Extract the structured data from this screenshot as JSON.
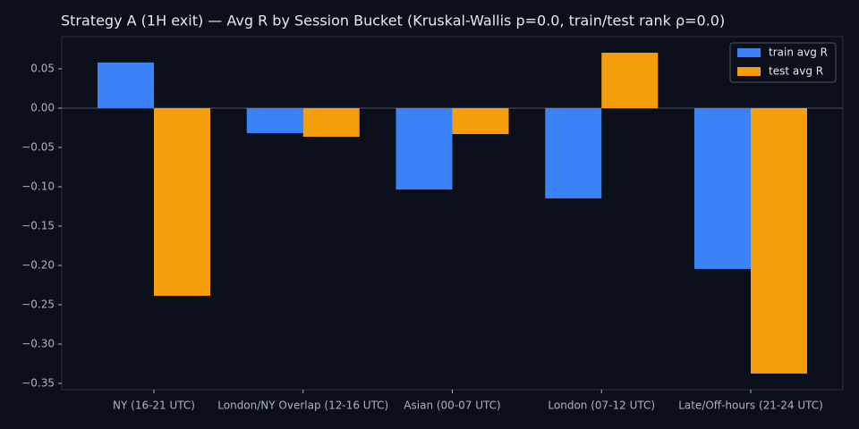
{
  "chart_data": {
    "type": "bar",
    "title": "Strategy A (1H exit) — Avg R by Session Bucket (Kruskal-Wallis p=0.0, train/test rank ρ=0.0)",
    "categories": [
      "NY (16-21 UTC)",
      "London/NY Overlap (12-16 UTC)",
      "Asian (00-07 UTC)",
      "London (07-12 UTC)",
      "Late/Off-hours (21-24 UTC)"
    ],
    "series": [
      {
        "name": "train avg R",
        "color": "#3b82f6",
        "values": [
          0.058,
          -0.0318,
          -0.1034,
          -0.1148,
          -0.2045
        ]
      },
      {
        "name": "test avg R",
        "color": "#f59e0b",
        "values": [
          -0.2386,
          -0.0364,
          -0.033,
          0.0705,
          -0.3375
        ]
      }
    ],
    "ylim": [
      -0.358,
      0.0909
    ],
    "yticks": [
      0.05,
      {
        "value": 0,
        "label": "0.00"
      },
      {
        "value": -0.05,
        "label": "−0.05"
      },
      {
        "value": -0.1,
        "label": "−0.10"
      },
      {
        "value": -0.15,
        "label": "−0.15"
      },
      {
        "value": -0.2,
        "label": "−0.20"
      },
      {
        "value": -0.25,
        "label": "−0.25"
      },
      {
        "value": -0.3,
        "label": "−0.30"
      },
      {
        "value": -0.35,
        "label": "−0.35"
      }
    ],
    "legend": "upper right"
  }
}
